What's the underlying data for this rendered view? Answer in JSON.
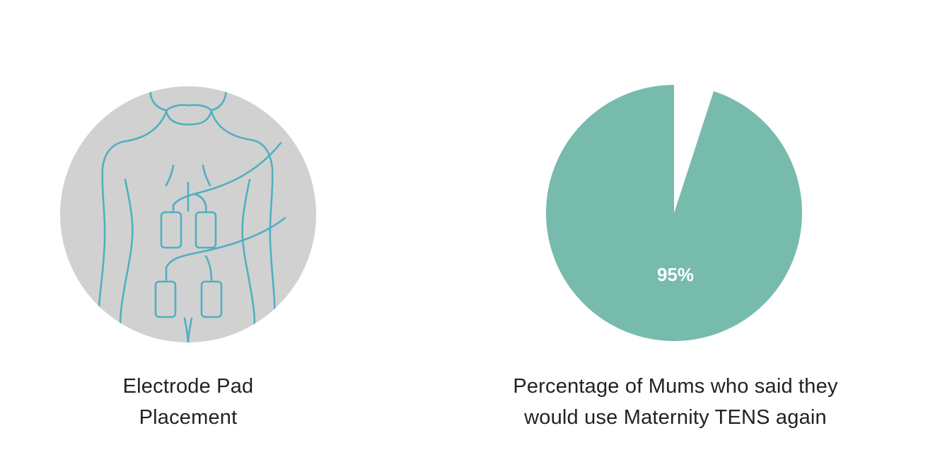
{
  "left_panel": {
    "illustration_icon": "electrode-placement-back-illustration",
    "caption_line1": "Electrode Pad",
    "caption_line2": "Placement"
  },
  "right_panel": {
    "caption_line1": "Percentage of Mums who said they",
    "caption_line2": "would use Maternity TENS again"
  },
  "colors": {
    "pie_fill": "#77bbad",
    "illustration_bg": "#d1d1d1",
    "illustration_line": "#4fb0bf"
  },
  "chart_data": {
    "type": "pie",
    "categories": [
      "",
      ""
    ],
    "values": [
      95,
      5
    ],
    "data_labels": [
      "95%",
      ""
    ],
    "colors": [
      "#77bbad",
      "#ffffff"
    ]
  }
}
